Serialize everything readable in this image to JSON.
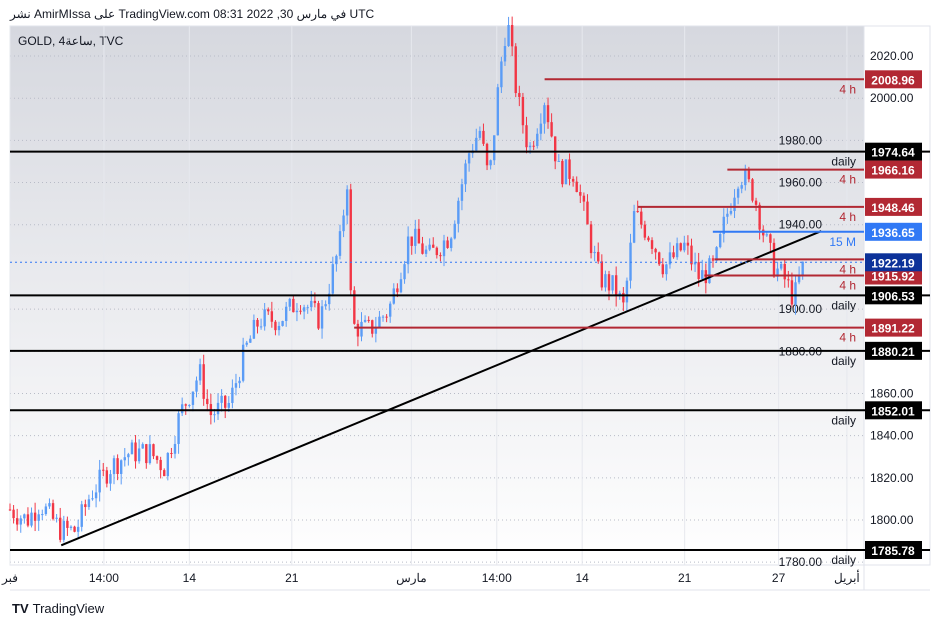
{
  "header": {
    "publish_line": "نشر AmirMIssa على TradingView.com 08:31 2022 ,30 في مارس UTC"
  },
  "watermark": {
    "label": "TradingView"
  },
  "chart_data": {
    "type": "candlestick",
    "title": "GOLD, 4ساعة, TVC",
    "ylim": [
      1775,
      2035
    ],
    "y_ticks": [
      2020,
      2000,
      1980,
      1960,
      1940,
      1900,
      1880,
      1860,
      1840,
      1820,
      1800,
      1780
    ],
    "x_ticks": [
      {
        "label": "فبر",
        "t": 0
      },
      {
        "label": "14:00",
        "t": 0.11
      },
      {
        "label": "14",
        "t": 0.21
      },
      {
        "label": "21",
        "t": 0.33
      },
      {
        "label": "مارس",
        "t": 0.47
      },
      {
        "label": "14:00",
        "t": 0.57
      },
      {
        "label": "14",
        "t": 0.67
      },
      {
        "label": "21",
        "t": 0.79
      },
      {
        "label": "27",
        "t": 0.9
      },
      {
        "label": "أبريل",
        "t": 0.98
      }
    ],
    "price_path": [
      [
        0,
        1805
      ],
      [
        0.02,
        1800
      ],
      [
        0.035,
        1808
      ],
      [
        0.06,
        1795
      ],
      [
        0.077,
        1795
      ],
      [
        0.094,
        1812
      ],
      [
        0.117,
        1825
      ],
      [
        0.14,
        1832
      ],
      [
        0.164,
        1832
      ],
      [
        0.181,
        1825
      ],
      [
        0.199,
        1850
      ],
      [
        0.222,
        1870
      ],
      [
        0.234,
        1850
      ],
      [
        0.257,
        1855
      ],
      [
        0.275,
        1880
      ],
      [
        0.292,
        1895
      ],
      [
        0.316,
        1895
      ],
      [
        0.339,
        1905
      ],
      [
        0.363,
        1895
      ],
      [
        0.386,
        1930
      ],
      [
        0.395,
        1962
      ],
      [
        0.4,
        1892
      ],
      [
        0.421,
        1890
      ],
      [
        0.444,
        1900
      ],
      [
        0.468,
        1935
      ],
      [
        0.491,
        1925
      ],
      [
        0.515,
        1935
      ],
      [
        0.538,
        1975
      ],
      [
        0.55,
        1985
      ],
      [
        0.561,
        1960
      ],
      [
        0.573,
        2010
      ],
      [
        0.582,
        2038
      ],
      [
        0.594,
        2000
      ],
      [
        0.608,
        1975
      ],
      [
        0.626,
        2000
      ],
      [
        0.643,
        1965
      ],
      [
        0.661,
        1965
      ],
      [
        0.678,
        1935
      ],
      [
        0.69,
        1915
      ],
      [
        0.708,
        1910
      ],
      [
        0.719,
        1900
      ],
      [
        0.731,
        1945
      ],
      [
        0.749,
        1935
      ],
      [
        0.766,
        1920
      ],
      [
        0.79,
        1930
      ],
      [
        0.807,
        1915
      ],
      [
        0.825,
        1920
      ],
      [
        0.836,
        1940
      ],
      [
        0.854,
        1965
      ],
      [
        0.871,
        1955
      ],
      [
        0.883,
        1935
      ],
      [
        0.895,
        1920
      ],
      [
        0.906,
        1915
      ],
      [
        0.918,
        1905
      ],
      [
        0.93,
        1922
      ]
    ],
    "up_color": "#5b9cf6",
    "down_color": "#f23645",
    "levels": [
      {
        "price": 2008.96,
        "label": "2008.96",
        "tag": "4 h",
        "color": "#b22833",
        "from": 0.626
      },
      {
        "price": 1974.64,
        "label": "1974.64",
        "tag": "daily",
        "color": "#000000",
        "from": 0
      },
      {
        "price": 1966.16,
        "label": "1966.16",
        "tag": "4 h",
        "color": "#b22833",
        "from": 0.84
      },
      {
        "price": 1948.46,
        "label": "1948.46",
        "tag": "4 h",
        "color": "#b22833",
        "from": 0.735
      },
      {
        "price": 1936.65,
        "label": "1936.65",
        "tag": "15 M",
        "color": "#3179f5",
        "from": 0.823
      },
      {
        "price": 1923.6,
        "label": "",
        "tag": "4 h",
        "color": "#b22833",
        "from": 0.825
      },
      {
        "price": 1915.92,
        "label": "1915.92",
        "tag": "4 h",
        "color": "#b22833",
        "from": 0.813
      },
      {
        "price": 1906.53,
        "label": "1906.53",
        "tag": "daily",
        "color": "#000000",
        "from": 0
      },
      {
        "price": 1891.22,
        "label": "1891.22",
        "tag": "4 h",
        "color": "#b22833",
        "from": 0.403
      },
      {
        "price": 1880.21,
        "label": "1880.21",
        "tag": "daily",
        "color": "#000000",
        "from": 0
      },
      {
        "price": 1852.01,
        "label": "1852.01",
        "tag": "daily",
        "color": "#000000",
        "from": 0
      },
      {
        "price": 1785.78,
        "label": "1785.78",
        "tag": "daily",
        "color": "#000000",
        "from": 0
      }
    ],
    "current_price": {
      "price": 1922.19,
      "label": "1922.19",
      "color": "#0c3299"
    },
    "trendline": [
      [
        0.06,
        1788
      ],
      [
        0.95,
        1937
      ]
    ]
  }
}
